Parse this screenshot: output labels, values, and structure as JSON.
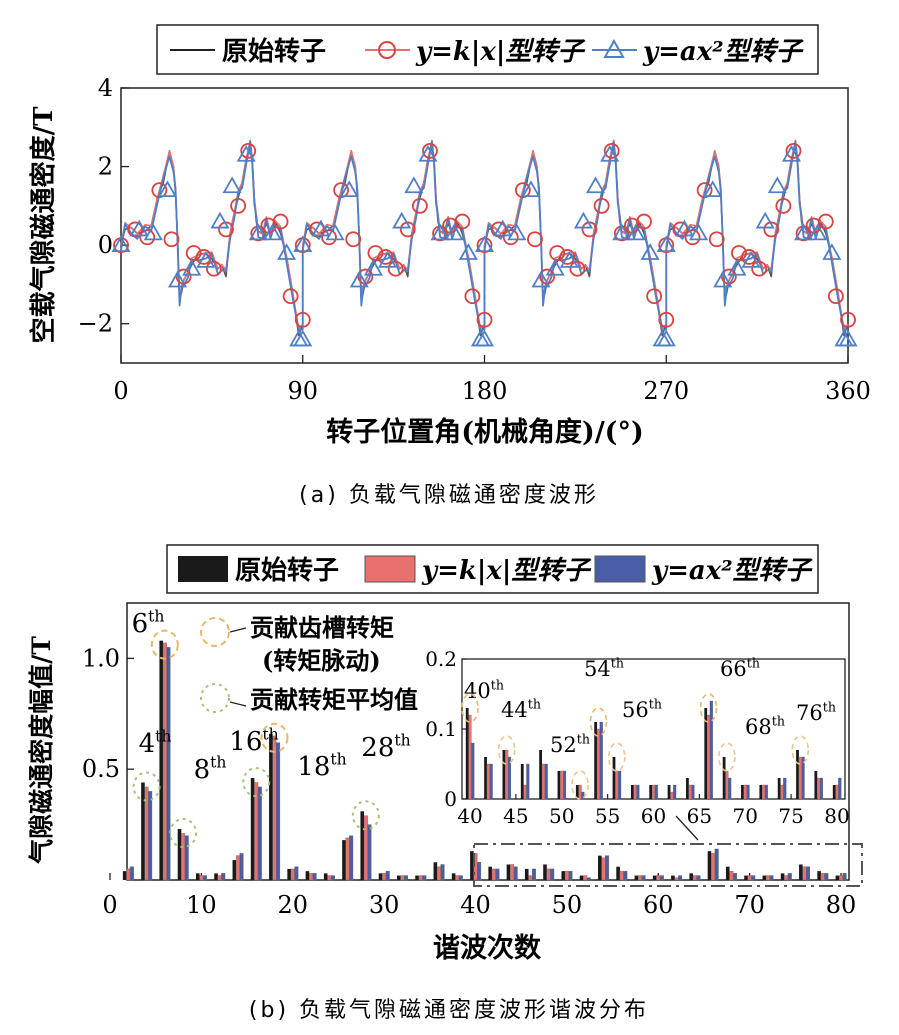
{
  "colors": {
    "original": "#1a1a1a",
    "klinear": "#e8706e",
    "quadratic": "#4a5ea8",
    "quadratic_line": "#4f7fc7",
    "circle": "#b8c67a",
    "dashed_box": "#555555"
  },
  "chart_data": [
    {
      "type": "line",
      "title": "",
      "caption": "(a) 负载气隙磁通密度波形",
      "xlabel": "转子位置角(机械角度)/(°)",
      "ylabel": "空载气隙磁通密度/T",
      "xlim": [
        0,
        360
      ],
      "ylim": [
        -3,
        4
      ],
      "xticks": [
        "0",
        "90",
        "180",
        "270",
        "360"
      ],
      "yticks": [
        "−2",
        "0",
        "2",
        "4"
      ],
      "legend": [
        {
          "text": "原始转子",
          "italic": false,
          "marker": "line"
        },
        {
          "text": "y=k|x|型转子",
          "italic": true,
          "marker": "circle"
        },
        {
          "text": "y=ax²型转子",
          "italic": true,
          "marker": "triangle"
        }
      ],
      "period_deg": 90,
      "wave_period_x": [
        0,
        2,
        5,
        8,
        12,
        15,
        18,
        21,
        24,
        26,
        27,
        28,
        29,
        30,
        31,
        33,
        35,
        38,
        42,
        45,
        48,
        50,
        52,
        54,
        56,
        58,
        60,
        62,
        64,
        65,
        66,
        67,
        68,
        70,
        72,
        74,
        76,
        79,
        82,
        85,
        88,
        90
      ],
      "wave_period_y": [
        0.0,
        0.4,
        0.45,
        0.3,
        0.35,
        0.5,
        1.2,
        1.6,
        2.4,
        2.0,
        1.3,
        0.2,
        -1.4,
        -1.2,
        -0.9,
        -0.7,
        -0.5,
        -0.25,
        -0.2,
        -0.35,
        -0.6,
        -0.5,
        -0.8,
        0.3,
        0.8,
        1.2,
        1.6,
        2.2,
        2.5,
        2.2,
        1.2,
        0.6,
        0.35,
        0.3,
        0.55,
        0.3,
        0.65,
        0.3,
        -0.3,
        -1.2,
        -2.3,
        -2.0
      ],
      "series": [
        {
          "name": "原始转子",
          "x": [
            0,
            22,
            26,
            29,
            45,
            64,
            67,
            72,
            90
          ],
          "y": [
            0.0,
            1.3,
            2.4,
            -1.4,
            -0.3,
            2.5,
            0.4,
            0.6,
            -2.3
          ]
        },
        {
          "name": "y=k|x|型转子",
          "x": [
            0,
            7,
            13,
            19,
            25,
            31,
            36,
            41,
            46,
            52,
            58,
            63,
            68,
            73,
            79,
            84,
            90
          ],
          "y": [
            0.0,
            0.4,
            0.2,
            1.4,
            0.15,
            -0.8,
            -0.2,
            -0.3,
            -0.6,
            0.4,
            1.0,
            2.4,
            0.3,
            0.5,
            0.6,
            -1.3,
            -1.9
          ]
        },
        {
          "name": "y=ax²型转子",
          "x": [
            0,
            9,
            16,
            23,
            28,
            35,
            42,
            49,
            55,
            62,
            68,
            75,
            82,
            88,
            90
          ],
          "y": [
            0.0,
            0.4,
            0.3,
            1.4,
            -0.9,
            -0.6,
            -0.4,
            0.6,
            1.5,
            2.3,
            0.3,
            0.3,
            -0.2,
            -2.4,
            -2.4
          ]
        }
      ]
    },
    {
      "type": "bar",
      "title": "",
      "caption": "(b) 负载气隙磁通密度波形谐波分布",
      "xlabel": "谐波次数",
      "ylabel": "气隙磁通密度幅值/T",
      "xlim": [
        0,
        80
      ],
      "ylim": [
        0,
        1.25
      ],
      "xticks": [
        "0",
        "10",
        "20",
        "30",
        "40",
        "50",
        "60",
        "70",
        "80"
      ],
      "yticks": [
        "0.5",
        "1.0"
      ],
      "legend": [
        {
          "text": "原始转子",
          "italic": false
        },
        {
          "text": "y=k|x|型转子",
          "italic": true
        },
        {
          "text": "y=ax²型转子",
          "italic": true
        }
      ],
      "annotations": {
        "cogging": "贡献齿槽转矩",
        "ripple": "(转矩脉动)",
        "average": "贡献转矩平均值"
      },
      "harmonic_orders": [
        2,
        4,
        6,
        8,
        10,
        12,
        14,
        16,
        18,
        20,
        22,
        24,
        26,
        28,
        30,
        32,
        34,
        36,
        38,
        40,
        42,
        44,
        46,
        48,
        50,
        52,
        54,
        56,
        58,
        60,
        62,
        64,
        66,
        68,
        70,
        72,
        74,
        76,
        78,
        80
      ],
      "series": [
        {
          "name": "原始转子",
          "values": [
            0.04,
            0.44,
            1.08,
            0.23,
            0.03,
            0.03,
            0.09,
            0.46,
            0.66,
            0.05,
            0.04,
            0.03,
            0.18,
            0.31,
            0.03,
            0.02,
            0.02,
            0.08,
            0.03,
            0.13,
            0.06,
            0.07,
            0.05,
            0.07,
            0.04,
            0.02,
            0.11,
            0.06,
            0.02,
            0.02,
            0.02,
            0.03,
            0.13,
            0.06,
            0.02,
            0.02,
            0.03,
            0.07,
            0.04,
            0.02
          ]
        },
        {
          "name": "y=k|x|型转子",
          "values": [
            0.05,
            0.42,
            1.07,
            0.21,
            0.02,
            0.02,
            0.11,
            0.44,
            0.65,
            0.05,
            0.03,
            0.02,
            0.19,
            0.29,
            0.03,
            0.02,
            0.02,
            0.06,
            0.02,
            0.12,
            0.05,
            0.07,
            0.02,
            0.05,
            0.04,
            0.02,
            0.1,
            0.04,
            0.02,
            0.02,
            0.01,
            0.02,
            0.12,
            0.04,
            0.02,
            0.02,
            0.02,
            0.06,
            0.03,
            0.02
          ]
        },
        {
          "name": "y=ax²型转子",
          "values": [
            0.06,
            0.4,
            1.05,
            0.2,
            0.02,
            0.03,
            0.12,
            0.42,
            0.62,
            0.06,
            0.03,
            0.02,
            0.2,
            0.25,
            0.04,
            0.02,
            0.02,
            0.07,
            0.02,
            0.08,
            0.05,
            0.06,
            0.05,
            0.05,
            0.04,
            0.01,
            0.11,
            0.04,
            0.02,
            0.02,
            0.02,
            0.02,
            0.14,
            0.03,
            0.02,
            0.02,
            0.03,
            0.06,
            0.03,
            0.03
          ]
        }
      ],
      "main_labels": [
        {
          "order": 4,
          "text": "4",
          "sup": "th"
        },
        {
          "order": 6,
          "text": "6",
          "sup": "th"
        },
        {
          "order": 8,
          "text": "8",
          "sup": "th"
        },
        {
          "order": 16,
          "text": "16",
          "sup": "th"
        },
        {
          "order": 18,
          "text": "18",
          "sup": "th"
        },
        {
          "order": 28,
          "text": "28",
          "sup": "th"
        }
      ],
      "inset": {
        "xlim": [
          40,
          80
        ],
        "ylim": [
          0,
          0.2
        ],
        "xticks": [
          "40",
          "45",
          "50",
          "55",
          "60",
          "65",
          "70",
          "75",
          "80"
        ],
        "yticks": [
          "0",
          "0.1",
          "0.2"
        ],
        "labels": [
          {
            "order": 40,
            "text": "40",
            "sup": "th"
          },
          {
            "order": 44,
            "text": "44",
            "sup": "th"
          },
          {
            "order": 52,
            "text": "52",
            "sup": "th"
          },
          {
            "order": 54,
            "text": "54",
            "sup": "th"
          },
          {
            "order": 56,
            "text": "56",
            "sup": "th"
          },
          {
            "order": 66,
            "text": "66",
            "sup": "th"
          },
          {
            "order": 68,
            "text": "68",
            "sup": "th"
          },
          {
            "order": 76,
            "text": "76",
            "sup": "th"
          }
        ]
      }
    }
  ]
}
